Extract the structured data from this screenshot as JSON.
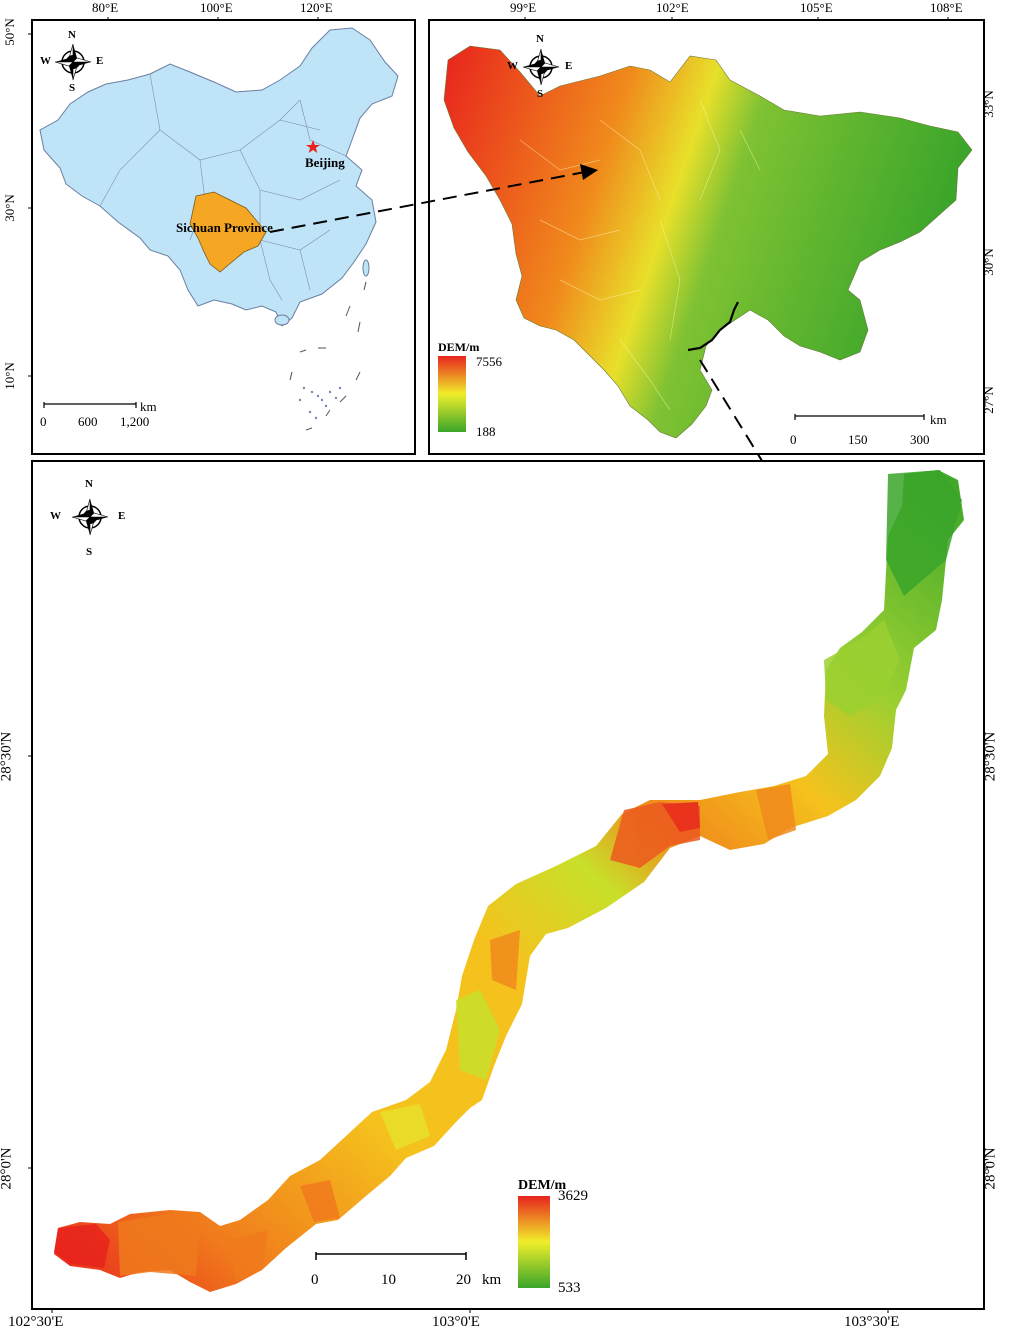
{
  "inset_china": {
    "top_ticks": [
      "80°E",
      "100°E",
      "120°E"
    ],
    "left_ticks": [
      "50°N",
      "30°N",
      "10°N"
    ],
    "province_label": "Sichuan Province",
    "capital_label": "Beijing",
    "scale_unit": "km",
    "scale_labels": [
      "0",
      "600",
      "1,200"
    ],
    "compass": {
      "n": "N",
      "s": "S",
      "e": "E",
      "w": "W"
    }
  },
  "inset_sichuan": {
    "top_ticks": [
      "99°E",
      "102°E",
      "105°E",
      "108°E"
    ],
    "right_ticks": [
      "33°N",
      "30°N",
      "27°N"
    ],
    "legend_title": "DEM/m",
    "legend_max": "7556",
    "legend_min": "188",
    "scale_unit": "km",
    "scale_labels": [
      "0",
      "150",
      "300"
    ],
    "compass": {
      "n": "N",
      "s": "S",
      "e": "E",
      "w": "W"
    }
  },
  "main_map": {
    "bottom_ticks": [
      "102°30'E",
      "103°0'E",
      "103°30'E"
    ],
    "left_ticks": [
      "28°30'N",
      "28°0'N"
    ],
    "right_ticks": [
      "28°30'N",
      "28°0'N"
    ],
    "legend_title": "DEM/m",
    "legend_max": "3629",
    "legend_min": "533",
    "scale_unit": "km",
    "scale_labels": [
      "0",
      "10",
      "20"
    ],
    "compass": {
      "n": "N",
      "s": "S",
      "e": "E",
      "w": "W"
    }
  },
  "colors": {
    "china_fill": "#bfe3f7",
    "sichuan_fill": "#f5a623",
    "dem_high": "#e8231d",
    "dem_mid": "#f0ee2a",
    "dem_low": "#3aa52a"
  }
}
